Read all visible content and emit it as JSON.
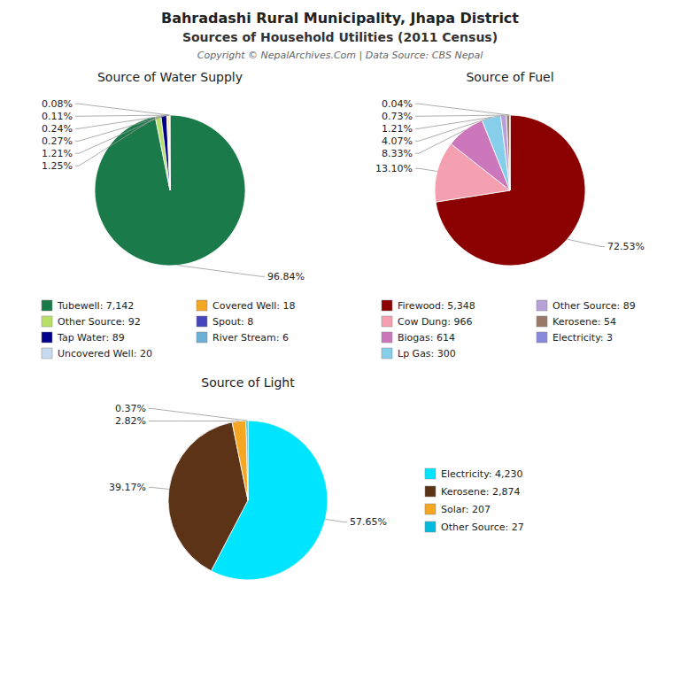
{
  "title": "Bahradashi Rural Municipality, Jhapa District",
  "subtitle": "Sources of Household Utilities (2011 Census)",
  "annotations": [
    "Copyright © NepalArchives.Com | Data Source: CBS Nepal"
  ],
  "chart_data": [
    {
      "type": "pie",
      "title": "Source of Water Supply",
      "categories": [
        "Tubewell: 7,142",
        "Other Source: 92",
        "Tap Water: 89",
        "Uncovered Well: 20",
        "Covered Well: 18",
        "Spout: 8",
        "River Stream: 6"
      ],
      "values": [
        96.84,
        1.25,
        1.21,
        0.27,
        0.24,
        0.11,
        0.08
      ],
      "value_labels": [
        "96.84%",
        "1.25%",
        "1.21%",
        "0.27%",
        "0.24%",
        "0.11%",
        "0.08%"
      ],
      "colors": [
        "#1a7a4a",
        "#b8e068",
        "#00008b",
        "#c6dbef",
        "#f5a623",
        "#4444bb",
        "#6baed6"
      ],
      "data_labels": true,
      "legend": "bottom"
    },
    {
      "type": "pie",
      "title": "Source of Fuel",
      "categories": [
        "Firewood: 5,348",
        "Cow Dung: 966",
        "Biogas: 614",
        "Lp Gas: 300",
        "Other Source: 89",
        "Kerosene: 54",
        "Electricity: 3"
      ],
      "values": [
        72.53,
        13.1,
        8.33,
        4.07,
        1.21,
        0.73,
        0.04
      ],
      "value_labels": [
        "72.53%",
        "13.10%",
        "8.33%",
        "4.07%",
        "1.21%",
        "0.73%",
        "0.04%"
      ],
      "colors": [
        "#8b0000",
        "#f4a0b0",
        "#cc77bb",
        "#87CEEB",
        "#b8a0d8",
        "#9b7a6a",
        "#8888dd"
      ],
      "data_labels": true,
      "legend": "bottom"
    },
    {
      "type": "pie",
      "title": "Source of Light",
      "categories": [
        "Electricity: 4,230",
        "Kerosene: 2,874",
        "Solar: 207",
        "Other Source: 27"
      ],
      "values": [
        57.65,
        39.17,
        2.82,
        0.37
      ],
      "value_labels": [
        "57.65%",
        "39.17%",
        "2.82%",
        "0.37%"
      ],
      "colors": [
        "#00e5ff",
        "#5c3317",
        "#f5a623",
        "#00bbdd"
      ],
      "data_labels": true,
      "legend": "right"
    }
  ]
}
